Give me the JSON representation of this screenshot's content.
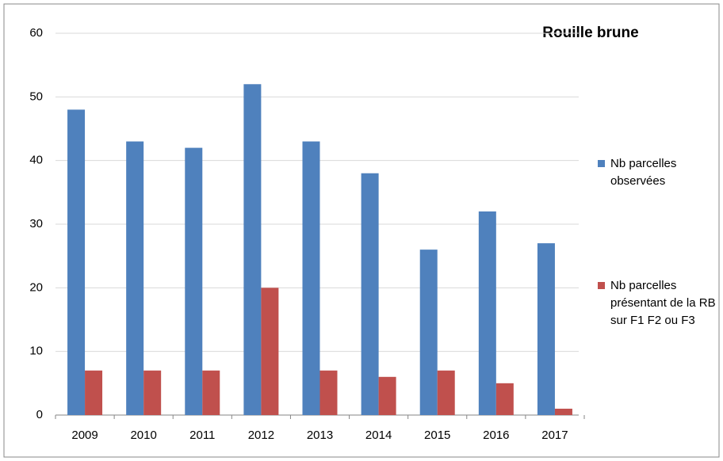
{
  "chart_data": {
    "type": "bar",
    "title": "Rouille brune",
    "categories": [
      "2009",
      "2010",
      "2011",
      "2012",
      "2013",
      "2014",
      "2015",
      "2016",
      "2017"
    ],
    "series": [
      {
        "name": "Nb parcelles observées",
        "color": "#4f81bd",
        "values": [
          48,
          43,
          42,
          52,
          43,
          38,
          26,
          32,
          27
        ]
      },
      {
        "name": "Nb parcelles présentant de la RB sur F1 F2 ou F3",
        "color": "#c0504d",
        "values": [
          7,
          7,
          7,
          20,
          7,
          6,
          7,
          5,
          1
        ]
      }
    ],
    "ylim": [
      0,
      60
    ],
    "yticks": [
      0,
      10,
      20,
      30,
      40,
      50,
      60
    ],
    "grid": true,
    "legend": "right"
  }
}
